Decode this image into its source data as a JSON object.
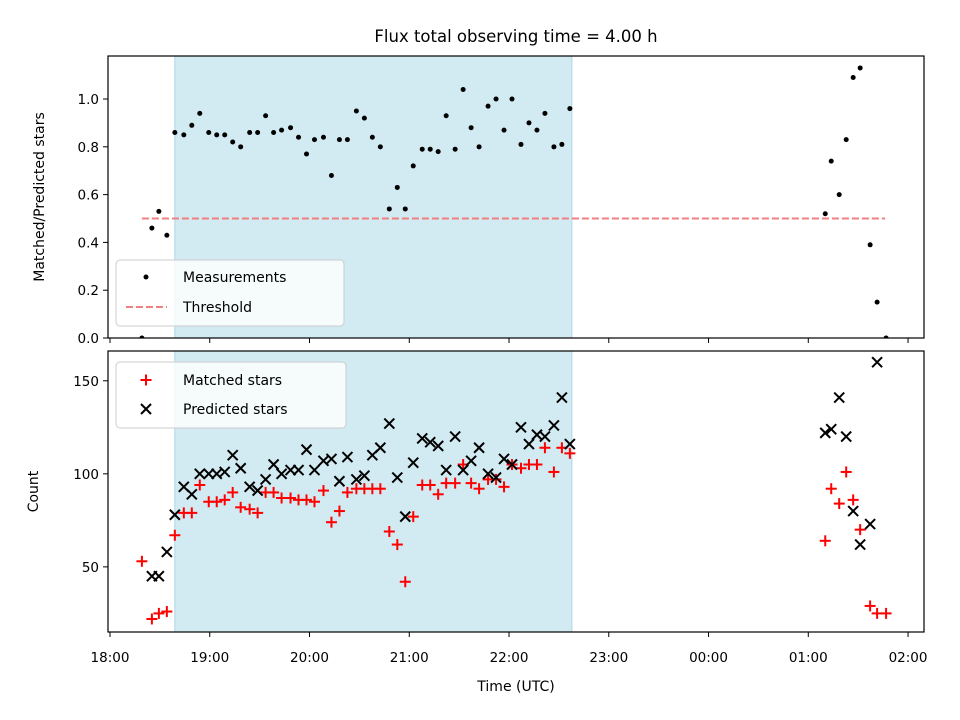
{
  "figure": {
    "title": "Flux total observing time = 4.00 h",
    "xlabel": "Time (UTC)"
  },
  "colors": {
    "shade": "#add8e6",
    "threshold": "#f08080",
    "matched": "#ff0000",
    "predicted": "#000000",
    "measurement": "#000000"
  },
  "chart_data": [
    {
      "type": "scatter",
      "title": "Flux total observing time = 4.00 h",
      "ylabel": "Matched/Predicted stars",
      "xlabel": "",
      "x_unit": "hours since 18:00 UTC",
      "xlim": [
        -0.02,
        8.16
      ],
      "ylim": [
        0.0,
        1.18
      ],
      "yticks": [
        0.0,
        0.2,
        0.4,
        0.6,
        0.8,
        1.0
      ],
      "ytick_labels": [
        "0.0",
        "0.2",
        "0.4",
        "0.6",
        "0.8",
        "1.0"
      ],
      "shaded_span": [
        0.65,
        4.63
      ],
      "legend": [
        "Measurements",
        "Threshold"
      ],
      "legend_loc": "lower-left",
      "threshold": {
        "name": "Threshold",
        "y": 0.5,
        "x_range": [
          0.32,
          7.77
        ]
      },
      "series": [
        {
          "name": "Measurements",
          "marker": "dot",
          "points": [
            [
              0.32,
              0.0
            ],
            [
              0.42,
              0.46
            ],
            [
              0.49,
              0.53
            ],
            [
              0.57,
              0.43
            ],
            [
              0.65,
              0.86
            ],
            [
              0.74,
              0.85
            ],
            [
              0.82,
              0.89
            ],
            [
              0.9,
              0.94
            ],
            [
              0.99,
              0.86
            ],
            [
              1.07,
              0.85
            ],
            [
              1.15,
              0.85
            ],
            [
              1.23,
              0.82
            ],
            [
              1.31,
              0.8
            ],
            [
              1.4,
              0.86
            ],
            [
              1.48,
              0.86
            ],
            [
              1.56,
              0.93
            ],
            [
              1.64,
              0.86
            ],
            [
              1.72,
              0.87
            ],
            [
              1.81,
              0.88
            ],
            [
              1.89,
              0.84
            ],
            [
              1.97,
              0.77
            ],
            [
              2.05,
              0.83
            ],
            [
              2.14,
              0.84
            ],
            [
              2.22,
              0.68
            ],
            [
              2.3,
              0.83
            ],
            [
              2.38,
              0.83
            ],
            [
              2.47,
              0.95
            ],
            [
              2.55,
              0.92
            ],
            [
              2.63,
              0.84
            ],
            [
              2.71,
              0.8
            ],
            [
              2.8,
              0.54
            ],
            [
              2.88,
              0.63
            ],
            [
              2.96,
              0.54
            ],
            [
              3.04,
              0.72
            ],
            [
              3.13,
              0.79
            ],
            [
              3.21,
              0.79
            ],
            [
              3.29,
              0.78
            ],
            [
              3.37,
              0.93
            ],
            [
              3.46,
              0.79
            ],
            [
              3.54,
              1.04
            ],
            [
              3.62,
              0.88
            ],
            [
              3.7,
              0.8
            ],
            [
              3.79,
              0.97
            ],
            [
              3.87,
              1.0
            ],
            [
              3.95,
              0.87
            ],
            [
              4.03,
              1.0
            ],
            [
              4.12,
              0.81
            ],
            [
              4.2,
              0.9
            ],
            [
              4.28,
              0.87
            ],
            [
              4.36,
              0.94
            ],
            [
              4.45,
              0.8
            ],
            [
              4.53,
              0.81
            ],
            [
              4.61,
              0.96
            ],
            [
              7.17,
              0.52
            ],
            [
              7.23,
              0.74
            ],
            [
              7.31,
              0.6
            ],
            [
              7.38,
              0.83
            ],
            [
              7.45,
              1.09
            ],
            [
              7.52,
              1.13
            ],
            [
              7.62,
              0.39
            ],
            [
              7.69,
              0.15
            ],
            [
              7.78,
              0.0
            ]
          ]
        }
      ]
    },
    {
      "type": "scatter",
      "title": "",
      "ylabel": "Count",
      "xlabel": "Time (UTC)",
      "x_unit": "hours since 18:00 UTC",
      "xlim": [
        -0.02,
        8.16
      ],
      "ylim": [
        15,
        166
      ],
      "yticks": [
        50,
        100,
        150
      ],
      "ytick_labels": [
        "50",
        "100",
        "150"
      ],
      "xticks": [
        0,
        1,
        2,
        3,
        4,
        5,
        6,
        7,
        8
      ],
      "xtick_labels": [
        "18:00",
        "19:00",
        "20:00",
        "21:00",
        "22:00",
        "23:00",
        "00:00",
        "01:00",
        "02:00"
      ],
      "shaded_span": [
        0.65,
        4.63
      ],
      "legend": [
        "Matched stars",
        "Predicted stars"
      ],
      "legend_loc": "upper-left",
      "series": [
        {
          "name": "Matched stars",
          "marker": "plus",
          "points": [
            [
              0.32,
              53
            ],
            [
              0.42,
              22
            ],
            [
              0.49,
              25
            ],
            [
              0.57,
              26
            ],
            [
              0.65,
              67
            ],
            [
              0.74,
              79
            ],
            [
              0.82,
              79
            ],
            [
              0.9,
              94
            ],
            [
              0.99,
              85
            ],
            [
              1.07,
              85
            ],
            [
              1.15,
              86
            ],
            [
              1.23,
              90
            ],
            [
              1.31,
              82
            ],
            [
              1.4,
              81
            ],
            [
              1.48,
              79
            ],
            [
              1.56,
              90
            ],
            [
              1.64,
              90
            ],
            [
              1.72,
              87
            ],
            [
              1.81,
              87
            ],
            [
              1.89,
              86
            ],
            [
              1.97,
              86
            ],
            [
              2.05,
              85
            ],
            [
              2.14,
              91
            ],
            [
              2.22,
              74
            ],
            [
              2.3,
              80
            ],
            [
              2.38,
              90
            ],
            [
              2.47,
              92
            ],
            [
              2.55,
              92
            ],
            [
              2.63,
              92
            ],
            [
              2.71,
              92
            ],
            [
              2.8,
              69
            ],
            [
              2.88,
              62
            ],
            [
              2.96,
              42
            ],
            [
              3.04,
              77
            ],
            [
              3.13,
              94
            ],
            [
              3.21,
              94
            ],
            [
              3.29,
              89
            ],
            [
              3.37,
              95
            ],
            [
              3.46,
              95
            ],
            [
              3.54,
              105
            ],
            [
              3.62,
              95
            ],
            [
              3.7,
              92
            ],
            [
              3.79,
              97
            ],
            [
              3.87,
              97
            ],
            [
              3.95,
              93
            ],
            [
              4.03,
              105
            ],
            [
              4.12,
              103
            ],
            [
              4.2,
              105
            ],
            [
              4.28,
              105
            ],
            [
              4.36,
              114
            ],
            [
              4.45,
              101
            ],
            [
              4.53,
              114
            ],
            [
              4.61,
              111
            ],
            [
              7.17,
              64
            ],
            [
              7.23,
              92
            ],
            [
              7.31,
              84
            ],
            [
              7.38,
              101
            ],
            [
              7.45,
              86
            ],
            [
              7.52,
              70
            ],
            [
              7.62,
              29
            ],
            [
              7.69,
              25
            ],
            [
              7.78,
              25
            ]
          ]
        },
        {
          "name": "Predicted stars",
          "marker": "x",
          "points": [
            [
              0.42,
              45
            ],
            [
              0.49,
              45
            ],
            [
              0.57,
              58
            ],
            [
              0.65,
              78
            ],
            [
              0.74,
              93
            ],
            [
              0.82,
              89
            ],
            [
              0.9,
              100
            ],
            [
              0.99,
              100
            ],
            [
              1.07,
              100
            ],
            [
              1.15,
              101
            ],
            [
              1.23,
              110
            ],
            [
              1.31,
              103
            ],
            [
              1.4,
              93
            ],
            [
              1.48,
              91
            ],
            [
              1.56,
              97
            ],
            [
              1.64,
              105
            ],
            [
              1.72,
              100
            ],
            [
              1.81,
              102
            ],
            [
              1.89,
              102
            ],
            [
              1.97,
              113
            ],
            [
              2.05,
              102
            ],
            [
              2.14,
              107
            ],
            [
              2.22,
              108
            ],
            [
              2.3,
              96
            ],
            [
              2.38,
              109
            ],
            [
              2.47,
              97
            ],
            [
              2.55,
              99
            ],
            [
              2.63,
              110
            ],
            [
              2.71,
              114
            ],
            [
              2.8,
              127
            ],
            [
              2.88,
              98
            ],
            [
              2.96,
              77
            ],
            [
              3.04,
              106
            ],
            [
              3.13,
              119
            ],
            [
              3.21,
              117
            ],
            [
              3.29,
              115
            ],
            [
              3.37,
              102
            ],
            [
              3.46,
              120
            ],
            [
              3.54,
              102
            ],
            [
              3.62,
              107
            ],
            [
              3.7,
              114
            ],
            [
              3.79,
              100
            ],
            [
              3.87,
              98
            ],
            [
              3.95,
              108
            ],
            [
              4.03,
              105
            ],
            [
              4.12,
              125
            ],
            [
              4.2,
              116
            ],
            [
              4.28,
              121
            ],
            [
              4.36,
              120
            ],
            [
              4.45,
              126
            ],
            [
              4.53,
              141
            ],
            [
              4.61,
              116
            ],
            [
              7.17,
              122
            ],
            [
              7.23,
              124
            ],
            [
              7.31,
              141
            ],
            [
              7.38,
              120
            ],
            [
              7.45,
              80
            ],
            [
              7.52,
              62
            ],
            [
              7.62,
              73
            ],
            [
              7.69,
              160
            ]
          ]
        }
      ]
    }
  ]
}
